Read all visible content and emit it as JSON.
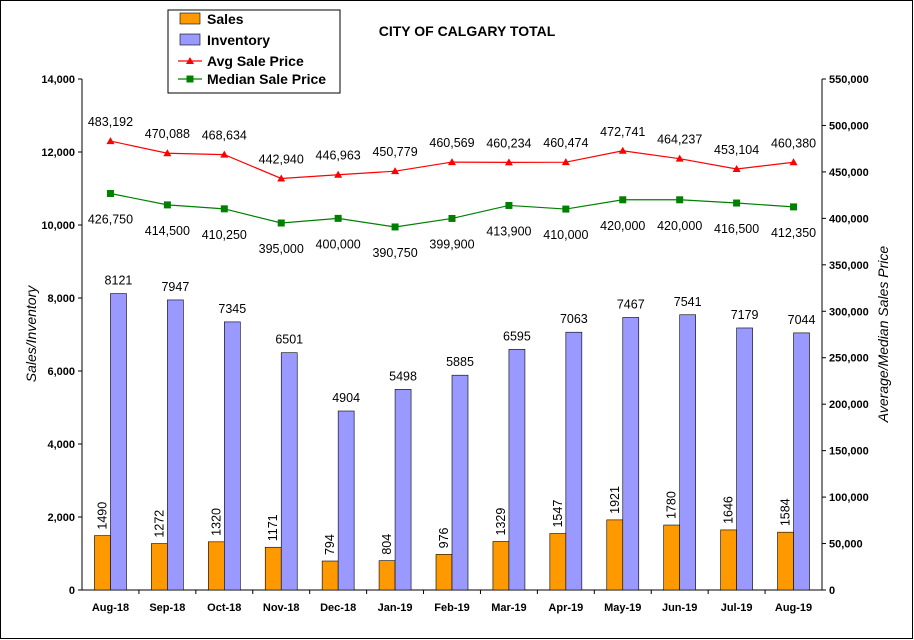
{
  "chart_data": {
    "type": "bar",
    "title": "CITY OF CALGARY TOTAL",
    "categories": [
      "Aug-18",
      "Sep-18",
      "Oct-18",
      "Nov-18",
      "Dec-18",
      "Jan-19",
      "Feb-19",
      "Mar-19",
      "Apr-19",
      "May-19",
      "Jun-19",
      "Jul-19",
      "Aug-19"
    ],
    "series": [
      {
        "name": "Sales",
        "type": "bar",
        "axis": "left",
        "color": "#ff9900",
        "values": [
          1490,
          1272,
          1320,
          1171,
          794,
          804,
          976,
          1329,
          1547,
          1921,
          1780,
          1646,
          1584
        ],
        "labels": [
          "1490",
          "1272",
          "1320",
          "1171",
          "794",
          "804",
          "976",
          "1329",
          "1547",
          "1921",
          "1780",
          "1646",
          "1584"
        ]
      },
      {
        "name": "Inventory",
        "type": "bar",
        "axis": "left",
        "color": "#9999ff",
        "values": [
          8121,
          7947,
          7345,
          6501,
          4904,
          5498,
          5885,
          6595,
          7063,
          7467,
          7541,
          7179,
          7044
        ],
        "labels": [
          "8121",
          "7947",
          "7345",
          "6501",
          "4904",
          "5498",
          "5885",
          "6595",
          "7063",
          "7467",
          "7541",
          "7179",
          "7044"
        ]
      },
      {
        "name": "Avg Sale Price",
        "type": "line",
        "axis": "right",
        "color": "#ff0000",
        "marker": "triangle",
        "values": [
          483192,
          470088,
          468634,
          442940,
          446963,
          450779,
          460569,
          460234,
          460474,
          472741,
          464237,
          453104,
          460380
        ],
        "labels": [
          "483,192",
          "470,088",
          "468,634",
          "442,940",
          "446,963",
          "450,779",
          "460,569",
          "460,234",
          "460,474",
          "472,741",
          "464,237",
          "453,104",
          "460,380"
        ]
      },
      {
        "name": "Median Sale Price",
        "type": "line",
        "axis": "right",
        "color": "#008000",
        "marker": "square",
        "values": [
          426750,
          414500,
          410250,
          395000,
          400000,
          390750,
          399900,
          413900,
          410000,
          420000,
          420000,
          416500,
          412350
        ],
        "labels": [
          "426,750",
          "414,500",
          "410,250",
          "395,000",
          "400,000",
          "390,750",
          "399,900",
          "413,900",
          "410,000",
          "420,000",
          "420,000",
          "416,500",
          "412,350"
        ]
      }
    ],
    "ylabel": "Sales/Inventory",
    "y2label": "Average/Median Sales Price",
    "ylim": [
      0,
      14000
    ],
    "y2lim": [
      0,
      550000
    ],
    "yticks": [
      "0",
      "2,000",
      "4,000",
      "6,000",
      "8,000",
      "10,000",
      "12,000",
      "14,000"
    ],
    "y2ticks": [
      "0",
      "50,000",
      "100,000",
      "150,000",
      "200,000",
      "250,000",
      "300,000",
      "350,000",
      "400,000",
      "450,000",
      "500,000",
      "550,000"
    ],
    "grid": false,
    "legend": "top-left"
  }
}
